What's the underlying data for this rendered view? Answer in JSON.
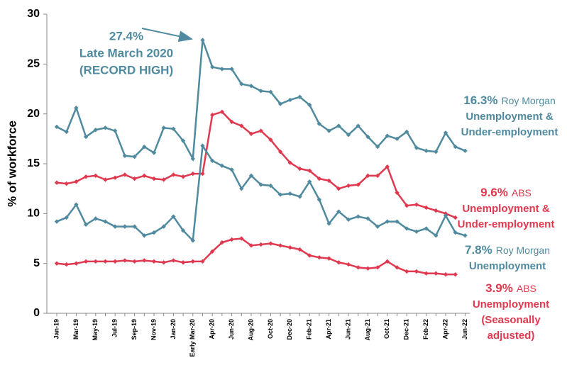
{
  "chart_data": {
    "type": "line",
    "ylabel": "% of workforce",
    "categories": [
      "Jan-19",
      null,
      "Mar-19",
      null,
      "May-19",
      null,
      "Jul-19",
      null,
      "Sep-19",
      null,
      "Nov-19",
      null,
      "Jan-20",
      null,
      "Early Mar-20",
      null,
      "Apr-20",
      null,
      "Jun-20",
      null,
      "Aug-20",
      null,
      "Oct-20",
      null,
      "Dec-20",
      null,
      "Feb-21",
      null,
      "Apr-21",
      null,
      "Jun-21",
      null,
      "Aug-21",
      null,
      "Oct-21",
      null,
      "Dec-21",
      null,
      "Feb-22",
      null,
      "Apr-22",
      null,
      "Jun-22"
    ],
    "ylim": [
      0,
      30
    ],
    "yticks": [
      0,
      5,
      10,
      15,
      20,
      25,
      30
    ],
    "grid": false,
    "series": [
      {
        "name": [
          "Roy Morgan",
          "Unemployment &",
          "Under-employment"
        ],
        "value_label": "16.3%",
        "color": "#4f8a9e",
        "values": [
          18.7,
          18.2,
          20.6,
          17.7,
          18.4,
          18.6,
          18.3,
          15.8,
          15.7,
          16.7,
          16.1,
          18.6,
          18.5,
          17.3,
          15.5,
          27.4,
          24.7,
          24.5,
          24.5,
          23.0,
          22.8,
          22.3,
          22.2,
          21.0,
          21.4,
          21.7,
          20.9,
          19.0,
          18.3,
          18.8,
          17.9,
          18.8,
          17.7,
          16.7,
          17.8,
          17.5,
          18.2,
          16.6,
          16.3,
          16.2,
          18.1,
          16.7,
          16.3
        ]
      },
      {
        "name": [
          "ABS",
          "Unemployment &",
          "Under-employment"
        ],
        "value_label": "9.6%",
        "color": "#e0394f",
        "values": [
          13.1,
          13.0,
          13.2,
          13.7,
          13.8,
          13.4,
          13.6,
          13.9,
          13.5,
          13.8,
          13.5,
          13.4,
          13.9,
          13.7,
          14.0,
          14.0,
          19.9,
          20.2,
          19.2,
          18.8,
          18.0,
          18.3,
          17.4,
          16.2,
          15.1,
          14.5,
          14.3,
          13.5,
          13.3,
          12.5,
          12.8,
          12.9,
          13.8,
          13.8,
          14.7,
          12.1,
          10.8,
          10.9,
          10.6,
          10.3,
          10.0,
          9.6,
          null
        ]
      },
      {
        "name": [
          "Roy Morgan",
          "Unemployment"
        ],
        "value_label": "7.8%",
        "color": "#4f8a9e",
        "values": [
          9.2,
          9.6,
          10.9,
          8.9,
          9.5,
          9.2,
          8.7,
          8.7,
          8.7,
          7.8,
          8.1,
          8.7,
          9.7,
          8.3,
          7.3,
          16.8,
          15.3,
          14.8,
          14.4,
          12.5,
          13.8,
          12.9,
          12.8,
          11.9,
          12.0,
          11.7,
          13.2,
          11.4,
          9.0,
          10.2,
          9.4,
          9.7,
          9.5,
          8.7,
          9.2,
          9.2,
          8.5,
          8.2,
          8.5,
          7.8,
          9.8,
          8.1,
          7.8
        ]
      },
      {
        "name": [
          "ABS",
          "Unemployment",
          "(Seasonally",
          "adjusted)"
        ],
        "value_label": "3.9%",
        "color": "#e0394f",
        "values": [
          5.0,
          4.9,
          5.0,
          5.2,
          5.2,
          5.2,
          5.2,
          5.3,
          5.2,
          5.3,
          5.2,
          5.1,
          5.3,
          5.1,
          5.2,
          5.2,
          6.2,
          7.1,
          7.4,
          7.5,
          6.8,
          6.9,
          7.0,
          6.8,
          6.6,
          6.4,
          5.8,
          5.6,
          5.5,
          5.1,
          4.9,
          4.6,
          4.5,
          4.6,
          5.2,
          4.6,
          4.2,
          4.2,
          4.0,
          4.0,
          3.9,
          3.9,
          null
        ]
      }
    ],
    "annotation": [
      "27.4%",
      "Late March 2020",
      "(RECORD HIGH)"
    ]
  }
}
